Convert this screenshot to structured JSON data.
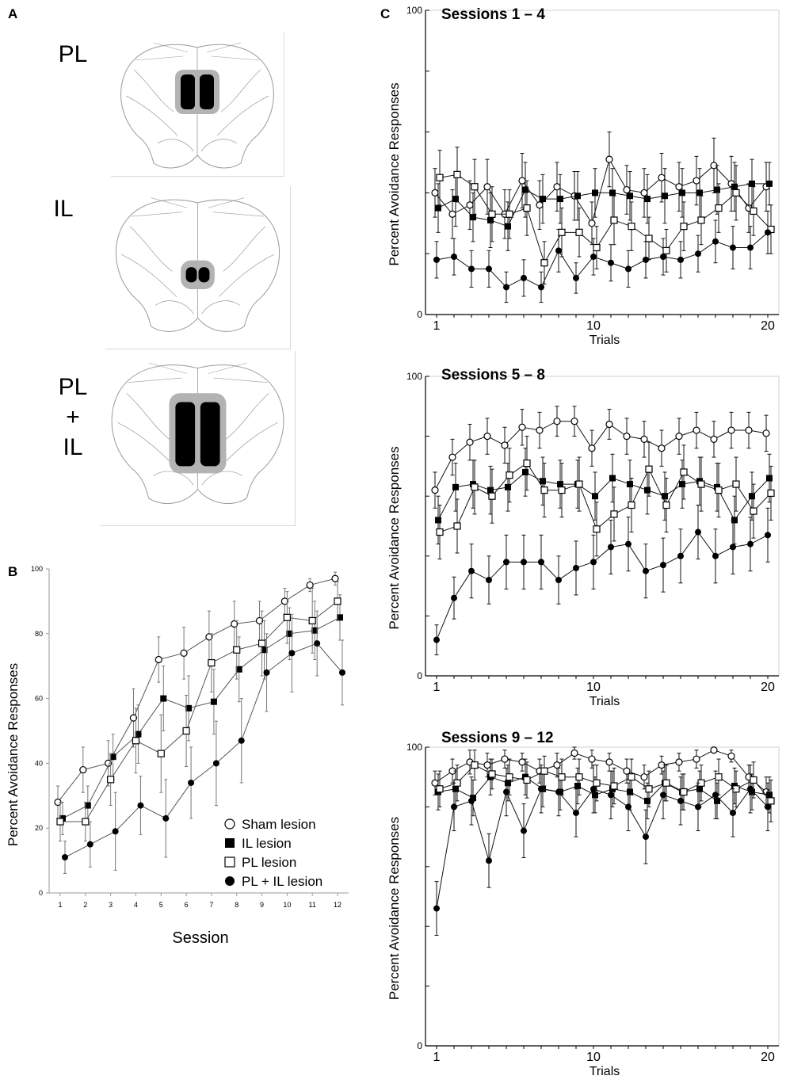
{
  "panels": {
    "a_letter": "A",
    "b_letter": "B",
    "c_letter": "C"
  },
  "panel_a": {
    "labels": [
      {
        "line1": "PL",
        "line2": "",
        "line3": ""
      },
      {
        "line1": "IL",
        "line2": "",
        "line3": ""
      },
      {
        "line1": "PL",
        "line2": "+",
        "line3": "IL"
      }
    ],
    "colors": {
      "lesion_core": "#000000",
      "lesion_extent": "#b3b3b3",
      "outline": "#9a9a9a"
    }
  },
  "series_styles": [
    {
      "name": "Sham lesion",
      "marker": "open-circle"
    },
    {
      "name": "IL lesion",
      "marker": "filled-square"
    },
    {
      "name": "PL lesion",
      "marker": "open-square"
    },
    {
      "name": "PL + IL lesion",
      "marker": "filled-circle"
    }
  ],
  "chart_data": [
    {
      "id": "B",
      "type": "line",
      "title": "",
      "xlabel": "Session",
      "ylabel": "Percent Avoidance Responses",
      "x": [
        1,
        2,
        3,
        4,
        5,
        6,
        7,
        8,
        9,
        10,
        11,
        12
      ],
      "xticks": [
        "1",
        "2",
        "3",
        "4",
        "5",
        "6",
        "7",
        "8",
        "9",
        "10",
        "11",
        "12"
      ],
      "yticks": [
        "0",
        "20",
        "40",
        "60",
        "80",
        "100"
      ],
      "ylim": [
        0,
        100
      ],
      "legend": {
        "position": "bottom-right",
        "entries": [
          "Sham lesion",
          "IL lesion",
          "PL lesion",
          "PL + IL lesion"
        ]
      },
      "series": [
        {
          "name": "Sham lesion",
          "values": [
            28,
            38,
            40,
            54,
            72,
            74,
            79,
            83,
            84,
            90,
            95,
            97
          ],
          "err": [
            5,
            7,
            7,
            9,
            7,
            8,
            8,
            7,
            6,
            4,
            2,
            2
          ]
        },
        {
          "name": "IL lesion",
          "values": [
            23,
            27,
            42,
            49,
            60,
            57,
            59,
            69,
            75,
            80,
            81,
            85
          ],
          "err": [
            5,
            6,
            7,
            9,
            10,
            10,
            10,
            10,
            9,
            8,
            9,
            7
          ]
        },
        {
          "name": "PL lesion",
          "values": [
            22,
            22,
            35,
            47,
            43,
            50,
            71,
            75,
            77,
            85,
            84,
            90
          ],
          "err": [
            6,
            6,
            8,
            10,
            12,
            11,
            9,
            9,
            10,
            8,
            10,
            6
          ]
        },
        {
          "name": "PL + IL lesion",
          "values": [
            11,
            15,
            19,
            27,
            23,
            34,
            40,
            47,
            68,
            74,
            77,
            68
          ],
          "err": [
            5,
            7,
            12,
            9,
            12,
            11,
            13,
            13,
            12,
            12,
            10,
            10
          ]
        }
      ]
    },
    {
      "id": "C1",
      "type": "line",
      "title": "Sessions 1 – 4",
      "xlabel": "Trials",
      "ylabel": "Percent Avoidance Responses",
      "x": [
        1,
        2,
        3,
        4,
        5,
        6,
        7,
        8,
        9,
        10,
        11,
        12,
        13,
        14,
        15,
        16,
        17,
        18,
        19,
        20
      ],
      "xticks": [
        "1",
        "10",
        "20"
      ],
      "yticks": [
        "0",
        "100"
      ],
      "ylim": [
        0,
        100
      ],
      "series": [
        {
          "name": "Sham lesion",
          "values": [
            40,
            33,
            36,
            42,
            33,
            44,
            36,
            42,
            39,
            30,
            51,
            41,
            40,
            45,
            42,
            44,
            49,
            43,
            35,
            42
          ],
          "err": [
            8,
            8,
            8,
            9,
            8,
            9,
            8,
            8,
            8,
            7,
            9,
            8,
            8,
            8,
            8,
            8,
            9,
            9,
            8,
            8
          ]
        },
        {
          "name": "IL lesion",
          "values": [
            35,
            38,
            32,
            31,
            29,
            41,
            38,
            38,
            39,
            40,
            40,
            39,
            38,
            39,
            40,
            40,
            41,
            42,
            43,
            43
          ],
          "err": [
            8,
            9,
            8,
            9,
            8,
            9,
            8,
            8,
            8,
            8,
            8,
            8,
            8,
            9,
            8,
            8,
            8,
            8,
            8,
            7
          ]
        },
        {
          "name": "PL lesion",
          "values": [
            45,
            46,
            42,
            33,
            33,
            35,
            17,
            27,
            27,
            22,
            31,
            29,
            25,
            21,
            29,
            31,
            35,
            40,
            34,
            28
          ],
          "err": [
            9,
            9,
            9,
            9,
            8,
            9,
            7,
            8,
            8,
            7,
            8,
            8,
            7,
            7,
            8,
            8,
            8,
            9,
            8,
            8
          ]
        },
        {
          "name": "PL + IL lesion",
          "values": [
            18,
            19,
            15,
            15,
            9,
            12,
            9,
            21,
            12,
            19,
            17,
            15,
            18,
            19,
            18,
            20,
            24,
            22,
            22,
            27
          ],
          "err": [
            6,
            6,
            6,
            6,
            5,
            6,
            5,
            7,
            5,
            6,
            6,
            6,
            6,
            6,
            6,
            6,
            7,
            7,
            7,
            7
          ]
        }
      ]
    },
    {
      "id": "C2",
      "type": "line",
      "title": "Sessions 5 – 8",
      "xlabel": "Trials",
      "ylabel": "Percent Avoidance Responses",
      "x": [
        1,
        2,
        3,
        4,
        5,
        6,
        7,
        8,
        9,
        10,
        11,
        12,
        13,
        14,
        15,
        16,
        17,
        18,
        19,
        20
      ],
      "xticks": [
        "1",
        "10",
        "20"
      ],
      "yticks": [
        "0",
        "100"
      ],
      "ylim": [
        0,
        100
      ],
      "series": [
        {
          "name": "Sham lesion",
          "values": [
            62,
            73,
            78,
            80,
            77,
            83,
            82,
            85,
            85,
            76,
            84,
            80,
            79,
            76,
            80,
            82,
            79,
            82,
            82,
            81
          ],
          "err": [
            6,
            6,
            6,
            6,
            6,
            6,
            6,
            5,
            5,
            6,
            5,
            6,
            6,
            6,
            6,
            6,
            6,
            6,
            6,
            6
          ]
        },
        {
          "name": "IL lesion",
          "values": [
            52,
            63,
            64,
            62,
            63,
            68,
            65,
            64,
            64,
            60,
            66,
            64,
            62,
            60,
            64,
            65,
            63,
            52,
            60,
            66
          ],
          "err": [
            8,
            8,
            8,
            8,
            8,
            8,
            8,
            8,
            8,
            8,
            8,
            8,
            8,
            8,
            8,
            8,
            8,
            8,
            8,
            8
          ]
        },
        {
          "name": "PL lesion",
          "values": [
            48,
            50,
            63,
            60,
            67,
            71,
            62,
            62,
            64,
            49,
            54,
            57,
            69,
            57,
            68,
            64,
            62,
            64,
            55,
            61
          ],
          "err": [
            9,
            9,
            9,
            9,
            9,
            9,
            9,
            9,
            9,
            9,
            9,
            9,
            9,
            9,
            9,
            9,
            9,
            9,
            9,
            9
          ]
        },
        {
          "name": "PL + IL lesion",
          "values": [
            12,
            26,
            35,
            32,
            38,
            38,
            38,
            32,
            36,
            38,
            43,
            44,
            35,
            37,
            40,
            48,
            40,
            43,
            44,
            47
          ],
          "err": [
            5,
            7,
            9,
            8,
            9,
            9,
            9,
            8,
            9,
            9,
            9,
            9,
            9,
            9,
            9,
            9,
            9,
            9,
            9,
            9
          ]
        }
      ]
    },
    {
      "id": "C3",
      "type": "line",
      "title": "Sessions 9 – 12",
      "xlabel": "Trials",
      "ylabel": "Percent Avoidance Responses",
      "x": [
        1,
        2,
        3,
        4,
        5,
        6,
        7,
        8,
        9,
        10,
        11,
        12,
        13,
        14,
        15,
        16,
        17,
        18,
        19,
        20
      ],
      "xticks": [
        "1",
        "10",
        "20"
      ],
      "yticks": [
        "0",
        "100"
      ],
      "ylim": [
        0,
        100
      ],
      "series": [
        {
          "name": "Sham lesion",
          "values": [
            88,
            92,
            95,
            94,
            96,
            95,
            92,
            94,
            98,
            96,
            95,
            92,
            90,
            94,
            95,
            96,
            99,
            97,
            90,
            85
          ],
          "err": [
            4,
            4,
            4,
            4,
            3,
            3,
            4,
            4,
            2,
            3,
            3,
            4,
            4,
            3,
            3,
            3,
            1,
            2,
            4,
            5
          ]
        },
        {
          "name": "IL lesion",
          "values": [
            85,
            86,
            83,
            90,
            88,
            90,
            86,
            85,
            87,
            84,
            86,
            85,
            82,
            88,
            85,
            86,
            82,
            87,
            85,
            84
          ],
          "err": [
            6,
            6,
            6,
            6,
            6,
            6,
            6,
            6,
            6,
            6,
            6,
            6,
            6,
            6,
            6,
            6,
            6,
            6,
            6,
            6
          ]
        },
        {
          "name": "PL lesion",
          "values": [
            86,
            88,
            94,
            91,
            90,
            89,
            92,
            90,
            90,
            88,
            87,
            90,
            86,
            88,
            85,
            88,
            90,
            86,
            89,
            82
          ],
          "err": [
            6,
            6,
            5,
            5,
            6,
            6,
            5,
            6,
            6,
            6,
            6,
            6,
            6,
            6,
            6,
            6,
            6,
            6,
            6,
            7
          ]
        },
        {
          "name": "PL + IL lesion",
          "values": [
            46,
            80,
            82,
            62,
            85,
            72,
            86,
            85,
            78,
            86,
            84,
            80,
            70,
            84,
            82,
            80,
            84,
            78,
            86,
            80
          ],
          "err": [
            9,
            8,
            8,
            9,
            8,
            9,
            8,
            8,
            8,
            8,
            8,
            8,
            9,
            8,
            8,
            8,
            8,
            8,
            8,
            8
          ]
        }
      ]
    }
  ]
}
